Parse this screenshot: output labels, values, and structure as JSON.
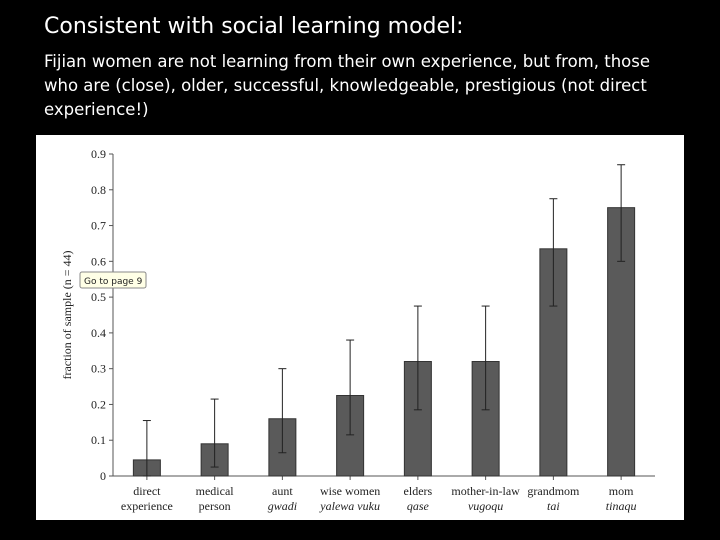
{
  "header": {
    "title": "Consistent with social learning model:",
    "subtitle": "Fijian women are not learning from their own experience, but from, those who are (close), older, successful, knowledgeable, prestigious (not direct experience!)"
  },
  "chart_data": {
    "type": "bar",
    "categories": [
      "direct experience",
      "medical person",
      "aunt",
      "wise women",
      "elders",
      "mother-in-law",
      "grandmom",
      "mom"
    ],
    "local_names": [
      null,
      null,
      "gwadi",
      "yalewa vuku",
      "qase",
      "vugoqu",
      "tai",
      "tinaqu"
    ],
    "values": [
      0.045,
      0.09,
      0.16,
      0.225,
      0.32,
      0.32,
      0.635,
      0.75
    ],
    "ci_low": [
      0.0,
      0.025,
      0.065,
      0.115,
      0.185,
      0.185,
      0.475,
      0.6
    ],
    "ci_high": [
      0.155,
      0.215,
      0.3,
      0.38,
      0.475,
      0.475,
      0.775,
      0.87
    ],
    "color": "#5a5a5a",
    "ylabel": "fraction of sample (n = 44)",
    "ylim": [
      0,
      0.9
    ],
    "yticks": [
      0,
      0.1,
      0.2,
      0.3,
      0.4,
      0.5,
      0.6,
      0.7,
      0.8,
      0.9
    ],
    "annotation": "Go to page 9"
  }
}
